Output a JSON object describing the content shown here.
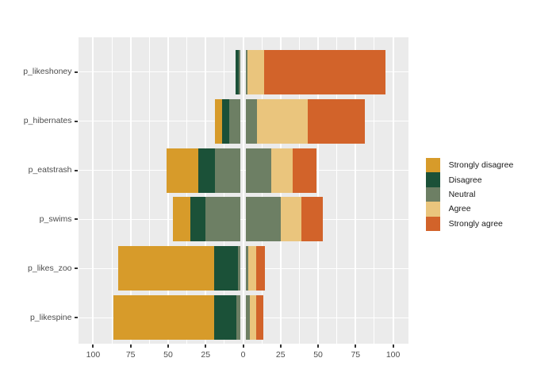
{
  "chart_data": {
    "type": "bar",
    "subtype": "diverging-stacked-likert",
    "orientation": "horizontal",
    "title": "",
    "xlabel": "",
    "ylabel": "",
    "categories": [
      "p_likeshoney",
      "p_hibernates",
      "p_eatstrash",
      "p_swims",
      "p_likes_zoo",
      "p_likespine"
    ],
    "series": [
      {
        "name": "Strongly disagree",
        "color": "#D79B2A",
        "values": [
          0,
          5,
          21,
          12,
          64,
          67
        ]
      },
      {
        "name": "Disagree",
        "color": "#1B5138",
        "values": [
          2,
          5,
          11,
          10,
          16,
          15
        ]
      },
      {
        "name": "Neutral",
        "color": "#6D7F64",
        "values": [
          6,
          18,
          38,
          50,
          7,
          9
        ]
      },
      {
        "name": "Agree",
        "color": "#EAC57D",
        "values": [
          11,
          34,
          14,
          14,
          5,
          4
        ]
      },
      {
        "name": "Strongly agree",
        "color": "#D2632A",
        "values": [
          81,
          38,
          16,
          14,
          6,
          5
        ]
      }
    ],
    "neutral_split_at_zero": true,
    "x_axis": {
      "range": [
        -110,
        110
      ],
      "major_ticks": [
        -100,
        -75,
        -50,
        -25,
        0,
        25,
        50,
        75,
        100
      ],
      "tick_labels": [
        "100",
        "75",
        "50",
        "25",
        "0",
        "25",
        "50",
        "75",
        "100"
      ],
      "minor_ticks": [
        -87.5,
        -62.5,
        -37.5,
        -12.5,
        12.5,
        37.5,
        62.5,
        87.5
      ]
    },
    "legend": {
      "position": "right",
      "entries": [
        "Strongly disagree",
        "Disagree",
        "Neutral",
        "Agree",
        "Strongly agree"
      ]
    },
    "style": {
      "panel_bg": "#EBEBEB",
      "grid_color": "#FFFFFF",
      "axis_text_color": "#4D4D4D",
      "tick_color": "#333333",
      "legend_text_color": "#1A1A1A"
    }
  }
}
